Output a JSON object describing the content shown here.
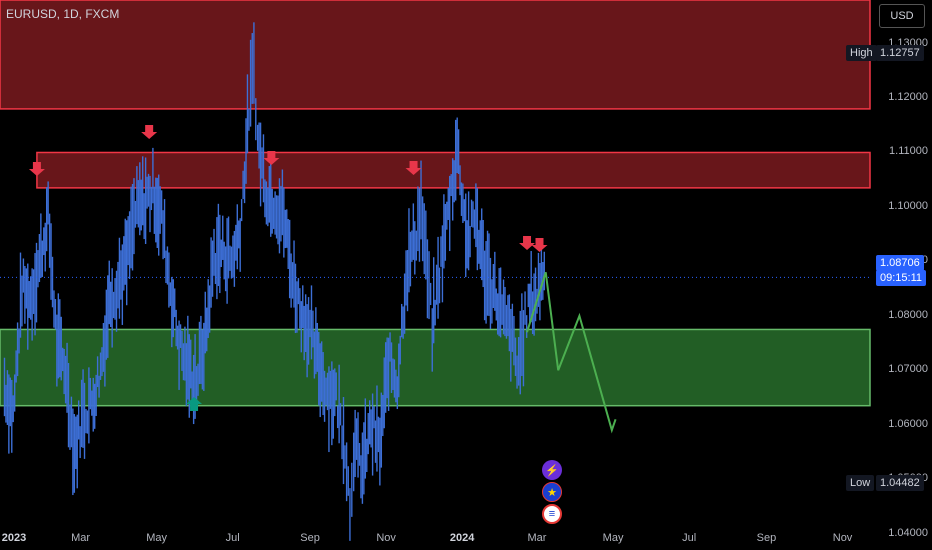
{
  "header": {
    "symbol_label": "EURUSD, 1D, FXCM",
    "currency_button": "USD"
  },
  "colors": {
    "background": "#000000",
    "resistance_zone_fill": "#7a1a1e",
    "resistance_zone_border": "#f23645",
    "support_zone_fill": "#2e7d32",
    "support_zone_border": "#66bb6a",
    "candles": "#3d6fd6",
    "projection_line": "#4caf50",
    "sell_arrow": "#e8364a",
    "buy_arrow": "#089981",
    "price_tag": "#2962ff"
  },
  "price_axis": {
    "labels": [
      "1.13000",
      "1.12000",
      "1.11000",
      "1.10000",
      "1.09000",
      "1.08000",
      "1.07000",
      "1.06000",
      "1.05000",
      "1.04000"
    ]
  },
  "time_axis": {
    "labels": [
      "2023",
      "Mar",
      "May",
      "Jul",
      "Sep",
      "Nov",
      "2024",
      "Mar",
      "May",
      "Jul",
      "Sep",
      "Nov"
    ]
  },
  "markers": {
    "high_label": "High",
    "high_value": "1.12757",
    "low_label": "Low",
    "low_value": "1.04482",
    "current_price": "1.08706",
    "countdown": "09:15:11"
  },
  "event_icons": [
    "lightning-icon",
    "eu-flag-icon",
    "us-flag-icon"
  ],
  "chart_data": {
    "type": "line",
    "title": "EURUSD, 1D, FXCM",
    "xlabel": "",
    "ylabel": "",
    "ylim": [
      1.037,
      1.138
    ],
    "grid": false,
    "series": [
      {
        "x": [
          "2022-12-30",
          "2023-01-06",
          "2023-01-13",
          "2023-01-20",
          "2023-01-27",
          "2023-02-03",
          "2023-02-10",
          "2023-02-17",
          "2023-02-24",
          "2023-03-03",
          "2023-03-10",
          "2023-03-17",
          "2023-03-24",
          "2023-03-31",
          "2023-04-07",
          "2023-04-14",
          "2023-04-21",
          "2023-04-28",
          "2023-05-05",
          "2023-05-12",
          "2023-05-19",
          "2023-05-26",
          "2023-06-02",
          "2023-06-09",
          "2023-06-16",
          "2023-06-23",
          "2023-06-30",
          "2023-07-07",
          "2023-07-14",
          "2023-07-18",
          "2023-07-21",
          "2023-07-28",
          "2023-08-04",
          "2023-08-11",
          "2023-08-18",
          "2023-08-25",
          "2023-09-01",
          "2023-09-08",
          "2023-09-15",
          "2023-09-22",
          "2023-09-29",
          "2023-10-03",
          "2023-10-06",
          "2023-10-13",
          "2023-10-20",
          "2023-10-27",
          "2023-11-03",
          "2023-11-10",
          "2023-11-17",
          "2023-11-24",
          "2023-11-29",
          "2023-12-08",
          "2023-12-15",
          "2023-12-22",
          "2023-12-28",
          "2024-01-05",
          "2024-01-12",
          "2024-01-19",
          "2024-01-26",
          "2024-02-02",
          "2024-02-09",
          "2024-02-14",
          "2024-02-23",
          "2024-03-01",
          "2024-03-08"
        ],
        "values": [
          1.067,
          1.062,
          1.085,
          1.083,
          1.09,
          1.098,
          1.075,
          1.07,
          1.055,
          1.062,
          1.064,
          1.07,
          1.083,
          1.086,
          1.09,
          1.099,
          1.101,
          1.103,
          1.098,
          1.085,
          1.075,
          1.07,
          1.068,
          1.076,
          1.091,
          1.092,
          1.09,
          1.096,
          1.118,
          1.126,
          1.112,
          1.103,
          1.101,
          1.098,
          1.087,
          1.081,
          1.077,
          1.071,
          1.066,
          1.065,
          1.057,
          1.045,
          1.056,
          1.052,
          1.06,
          1.056,
          1.072,
          1.068,
          1.088,
          1.094,
          1.1,
          1.078,
          1.09,
          1.101,
          1.111,
          1.094,
          1.098,
          1.088,
          1.085,
          1.08,
          1.077,
          1.07,
          1.082,
          1.084,
          1.09
        ]
      }
    ],
    "projection": {
      "x": [
        "2024-02-22",
        "2024-03-08",
        "2024-03-18",
        "2024-04-04",
        "2024-04-30",
        "2024-05-03"
      ],
      "values": [
        1.077,
        1.088,
        1.07,
        1.08,
        1.059,
        1.061
      ]
    },
    "zones": [
      {
        "name": "upper-resistance",
        "from": 1.118,
        "to": 1.138
      },
      {
        "name": "lower-resistance",
        "from": 1.1035,
        "to": 1.11
      },
      {
        "name": "support",
        "from": 1.0635,
        "to": 1.0775
      }
    ],
    "sell_arrows_dates": [
      "2023-01-25",
      "2023-04-25",
      "2023-08-01",
      "2023-11-23",
      "2024-02-22",
      "2024-03-03"
    ],
    "buy_arrows_dates": [
      "2023-05-31"
    ]
  }
}
